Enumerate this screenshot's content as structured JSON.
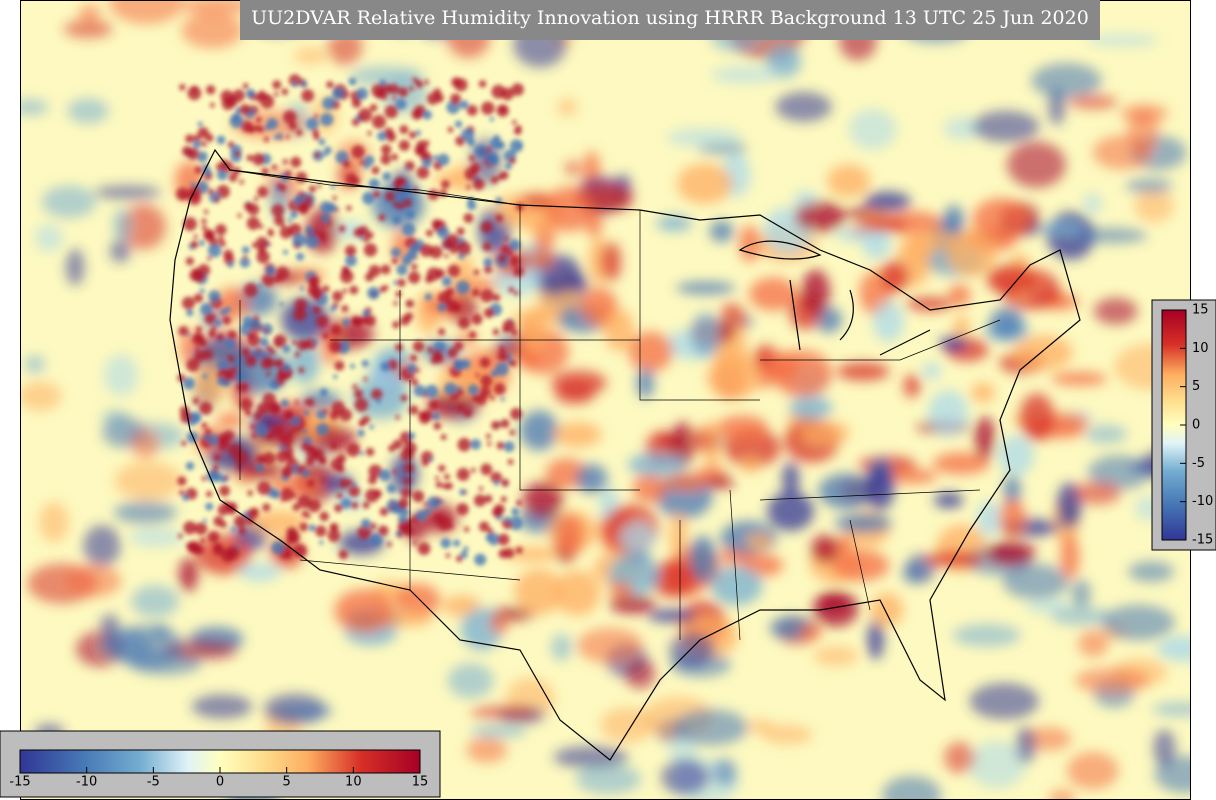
{
  "title": "UU2DVAR Relative Humidity Innovation using HRRR Background 13 UTC 25 Jun 2020",
  "colorbar_vertical": {
    "range": [
      -15,
      15
    ],
    "ticks": [
      15,
      10,
      5,
      0,
      -5,
      -10,
      -15
    ]
  },
  "colorbar_horizontal": {
    "range": [
      -15,
      15
    ],
    "ticks": [
      -15,
      -10,
      -5,
      0,
      5,
      10,
      15
    ]
  }
}
